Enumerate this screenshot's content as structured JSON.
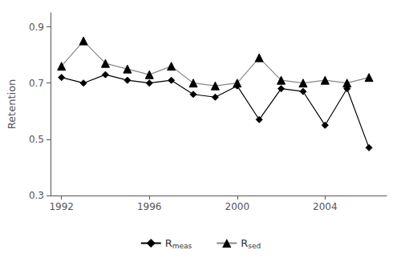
{
  "chart_data": {
    "type": "line",
    "x": [
      1992,
      1993,
      1994,
      1995,
      1996,
      1997,
      1998,
      1999,
      2000,
      2001,
      2002,
      2003,
      2004,
      2005,
      2006
    ],
    "series": [
      {
        "name": "Rmeas",
        "color": "#000000",
        "marker": "diamond",
        "values": [
          0.72,
          0.7,
          0.73,
          0.71,
          0.7,
          0.71,
          0.66,
          0.65,
          0.69,
          0.57,
          0.68,
          0.67,
          0.55,
          0.68,
          0.47
        ]
      },
      {
        "name": "Rsed",
        "color": "#888888",
        "marker": "triangle",
        "values": [
          0.76,
          0.85,
          0.77,
          0.75,
          0.73,
          0.76,
          0.7,
          0.69,
          0.7,
          0.79,
          0.71,
          0.7,
          0.71,
          0.7,
          0.72
        ]
      }
    ],
    "ylabel": "Retention",
    "xlim": [
      1991.5,
      2006.8
    ],
    "xticks": [
      1992,
      1996,
      2000,
      2004
    ],
    "ylim": [
      0.3,
      0.95
    ],
    "yticks": [
      0.3,
      0.5,
      0.7,
      0.9
    ],
    "grid": false,
    "legend": "bottom"
  }
}
